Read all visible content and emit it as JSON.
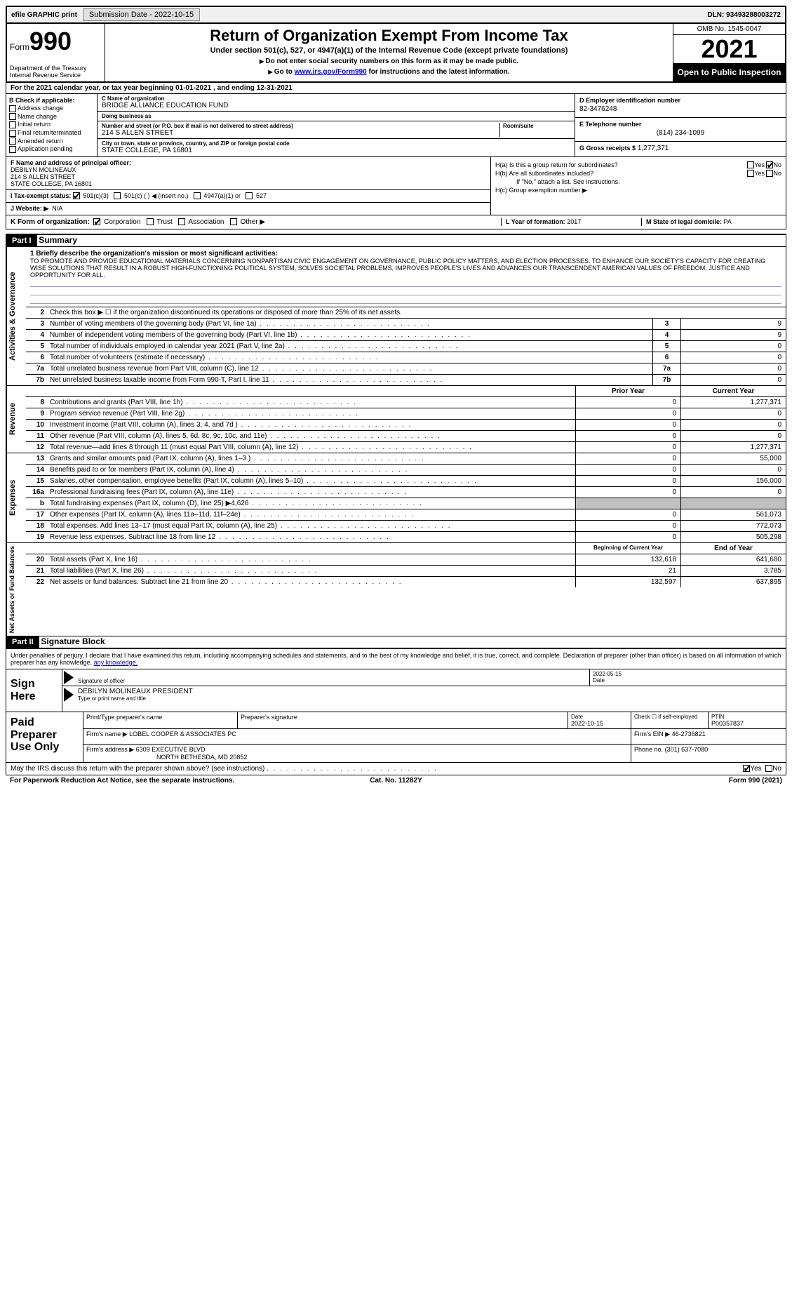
{
  "topbar": {
    "efile": "efile GRAPHIC print",
    "submission": "Submission Date - 2022-10-15",
    "dln": "DLN: 93493288003272"
  },
  "header": {
    "form_label": "Form",
    "form_no": "990",
    "dept": "Department of the Treasury\nInternal Revenue Service",
    "title": "Return of Organization Exempt From Income Tax",
    "subtitle": "Under section 501(c), 527, or 4947(a)(1) of the Internal Revenue Code (except private foundations)",
    "note1": "Do not enter social security numbers on this form as it may be made public.",
    "note2_pre": "Go to ",
    "note2_link": "www.irs.gov/Form990",
    "note2_post": " for instructions and the latest information.",
    "omb": "OMB No. 1545-0047",
    "year": "2021",
    "open": "Open to Public Inspection"
  },
  "rowA": "For the 2021 calendar year, or tax year beginning 01-01-2021    , and ending 12-31-2021",
  "colB": {
    "hdr": "B Check if applicable:",
    "items": [
      "Address change",
      "Name change",
      "Initial return",
      "Final return/terminated",
      "Amended return",
      "Application pending"
    ]
  },
  "colC": {
    "name_lbl": "C Name of organization",
    "org": "BRIDGE ALLIANCE EDUCATION FUND",
    "dba_lbl": "Doing business as",
    "dba": "",
    "street_lbl": "Number and street (or P.O. box if mail is not delivered to street address)",
    "street": "214 S ALLEN STREET",
    "room_lbl": "Room/suite",
    "city_lbl": "City or town, state or province, country, and ZIP or foreign postal code",
    "city": "STATE COLLEGE, PA  16801"
  },
  "colD": {
    "ein_lbl": "D Employer identification number",
    "ein": "82-3476248",
    "phone_lbl": "E Telephone number",
    "phone": "(814) 234-1099",
    "gross_lbl": "G Gross receipts $",
    "gross": "1,277,371"
  },
  "rowF": {
    "lbl": "F  Name and address of principal officer:",
    "name": "DEBILYN MOLINEAUX",
    "addr1": "214 S ALLEN STREET",
    "addr2": "STATE COLLEGE, PA  16801"
  },
  "rowI_lbl": "I   Tax-exempt status:",
  "rowI_opts": {
    "a": "501(c)(3)",
    "b": "501(c) (  ) ◀ (insert no.)",
    "c": "4947(a)(1) or",
    "d": "527"
  },
  "rowJ": {
    "lbl": "J   Website: ▶",
    "val": "N/A"
  },
  "rowH": {
    "ha": "H(a)  Is this a group return for subordinates?",
    "hb": "H(b)  Are all subordinates included?",
    "hb_note": "If \"No,\" attach a list. See instructions.",
    "hc": "H(c)  Group exemption number ▶"
  },
  "rowK": {
    "lbl": "K Form of organization:",
    "opts": [
      "Corporation",
      "Trust",
      "Association",
      "Other ▶"
    ]
  },
  "rowL": {
    "lbl": "L Year of formation:",
    "val": "2017"
  },
  "rowM": {
    "lbl": "M State of legal domicile:",
    "val": "PA"
  },
  "partI": {
    "hdr": "Part I",
    "title": "Summary"
  },
  "mission": {
    "lbl": "1   Briefly describe the organization's mission or most significant activities:",
    "text": "TO PROMOTE AND PROVIDE EDUCATIONAL MATERIALS CONCERNING NONPARTISAN CIVIC ENGAGEMENT ON GOVERNANCE, PUBLIC POLICY MATTERS, AND ELECTION PROCESSES. TO ENHANCE OUR SOCIETY'S CAPACITY FOR CREATING WISE SOLUTIONS THAT RESULT IN A ROBUST HIGH-FUNCTIONING POLITICAL SYSTEM, SOLVES SOCIETAL PROBLEMS, IMPROVES PEOPLE'S LIVES AND ADVANCES OUR TRANSCENDENT AMERICAN VALUES OF FREEDOM, JUSTICE AND OPPORTUNITY FOR ALL."
  },
  "gov": {
    "r2": "Check this box ▶ ☐  if the organization discontinued its operations or disposed of more than 25% of its net assets.",
    "rows": [
      {
        "n": "3",
        "t": "Number of voting members of the governing body (Part VI, line 1a)",
        "b": "3",
        "v": "9"
      },
      {
        "n": "4",
        "t": "Number of independent voting members of the governing body (Part VI, line 1b)",
        "b": "4",
        "v": "9"
      },
      {
        "n": "5",
        "t": "Total number of individuals employed in calendar year 2021 (Part V, line 2a)",
        "b": "5",
        "v": "0"
      },
      {
        "n": "6",
        "t": "Total number of volunteers (estimate if necessary)",
        "b": "6",
        "v": "0"
      },
      {
        "n": "7a",
        "t": "Total unrelated business revenue from Part VIII, column (C), line 12",
        "b": "7a",
        "v": "0"
      },
      {
        "n": "7b",
        "t": "Net unrelated business taxable income from Form 990-T, Part I, line 11",
        "b": "7b",
        "v": "0"
      }
    ]
  },
  "rev_hdr": {
    "py": "Prior Year",
    "cy": "Current Year"
  },
  "rev": [
    {
      "n": "8",
      "t": "Contributions and grants (Part VIII, line 1h)",
      "p": "0",
      "c": "1,277,371"
    },
    {
      "n": "9",
      "t": "Program service revenue (Part VIII, line 2g)",
      "p": "0",
      "c": "0"
    },
    {
      "n": "10",
      "t": "Investment income (Part VIII, column (A), lines 3, 4, and 7d )",
      "p": "0",
      "c": "0"
    },
    {
      "n": "11",
      "t": "Other revenue (Part VIII, column (A), lines 5, 6d, 8c, 9c, 10c, and 11e)",
      "p": "0",
      "c": "0"
    },
    {
      "n": "12",
      "t": "Total revenue—add lines 8 through 11 (must equal Part VIII, column (A), line 12)",
      "p": "0",
      "c": "1,277,371"
    }
  ],
  "exp": [
    {
      "n": "13",
      "t": "Grants and similar amounts paid (Part IX, column (A), lines 1–3 )",
      "p": "0",
      "c": "55,000"
    },
    {
      "n": "14",
      "t": "Benefits paid to or for members (Part IX, column (A), line 4)",
      "p": "0",
      "c": "0"
    },
    {
      "n": "15",
      "t": "Salaries, other compensation, employee benefits (Part IX, column (A), lines 5–10)",
      "p": "0",
      "c": "156,000"
    },
    {
      "n": "16a",
      "t": "Professional fundraising fees (Part IX, column (A), line 11e)",
      "p": "0",
      "c": "0"
    },
    {
      "n": "b",
      "t": "Total fundraising expenses (Part IX, column (D), line 25) ▶4,626",
      "p": "__SHADE__",
      "c": "__SHADE__"
    },
    {
      "n": "17",
      "t": "Other expenses (Part IX, column (A), lines 11a–11d, 11f–24e)",
      "p": "0",
      "c": "561,073"
    },
    {
      "n": "18",
      "t": "Total expenses. Add lines 13–17 (must equal Part IX, column (A), line 25)",
      "p": "0",
      "c": "772,073"
    },
    {
      "n": "19",
      "t": "Revenue less expenses. Subtract line 18 from line 12",
      "p": "0",
      "c": "505,298"
    }
  ],
  "na_hdr": {
    "py": "Beginning of Current Year",
    "cy": "End of Year"
  },
  "na": [
    {
      "n": "20",
      "t": "Total assets (Part X, line 16)",
      "p": "132,618",
      "c": "641,680"
    },
    {
      "n": "21",
      "t": "Total liabilities (Part X, line 26)",
      "p": "21",
      "c": "3,785"
    },
    {
      "n": "22",
      "t": "Net assets or fund balances. Subtract line 21 from line 20",
      "p": "132,597",
      "c": "637,895"
    }
  ],
  "vtabs": {
    "gov": "Activities & Governance",
    "rev": "Revenue",
    "exp": "Expenses",
    "na": "Net Assets or Fund Balances"
  },
  "partII": {
    "hdr": "Part II",
    "title": "Signature Block"
  },
  "sig_intro": "Under penalties of perjury, I declare that I have examined this return, including accompanying schedules and statements, and to the best of my knowledge and belief, it is true, correct, and complete. Declaration of preparer (other than officer) is based on all information of which preparer has any knowledge.",
  "sign": {
    "left": "Sign Here",
    "sig_lbl": "Signature of officer",
    "date_lbl": "Date",
    "date": "2022-05-15",
    "name": "DEBILYN MOLINEAUX  PRESIDENT",
    "name_lbl": "Type or print name and title"
  },
  "prep": {
    "left": "Paid Preparer Use Only",
    "r1": {
      "a": "Print/Type preparer's name",
      "b": "Preparer's signature",
      "c_lbl": "Date",
      "c": "2022-10-15",
      "d": "Check ☐ if self-employed",
      "e_lbl": "PTIN",
      "e": "P00357837"
    },
    "r2": {
      "a_lbl": "Firm's name   ▶",
      "a": "LOBEL COOPER & ASSOCIATES PC",
      "b_lbl": "Firm's EIN ▶",
      "b": "46-2736821"
    },
    "r3": {
      "a_lbl": "Firm's address ▶",
      "a1": "6309 EXECUTIVE BLVD",
      "a2": "NORTH BETHESDA, MD  20852",
      "b_lbl": "Phone no.",
      "b": "(301) 637-7080"
    }
  },
  "discuss": "May the IRS discuss this return with the preparer shown above? (see instructions)",
  "footer": {
    "l": "For Paperwork Reduction Act Notice, see the separate instructions.",
    "c": "Cat. No. 11282Y",
    "r": "Form 990 (2021)"
  }
}
